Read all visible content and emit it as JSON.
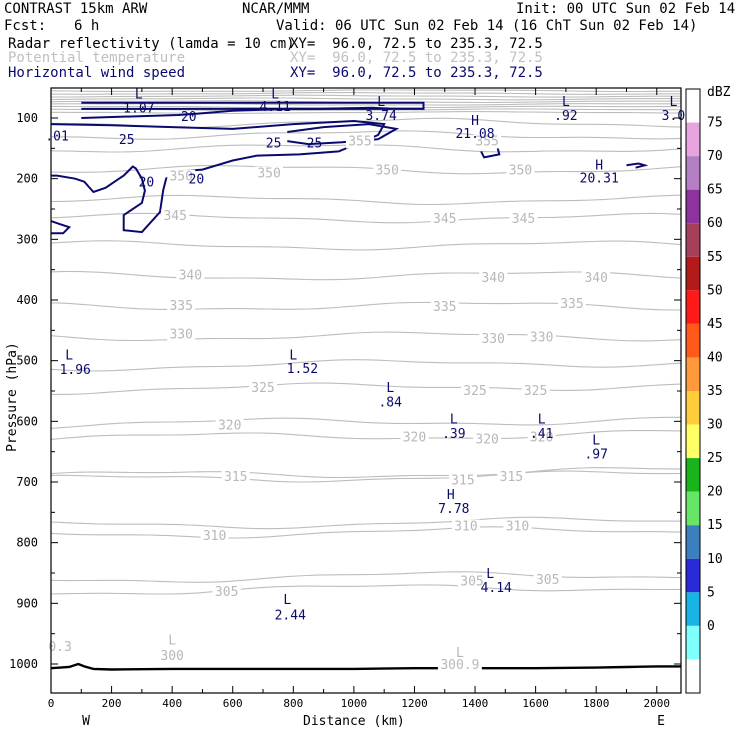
{
  "header": {
    "model": "CONTRAST 15km ARW",
    "center": "NCAR/MMM",
    "init": "Init: 00 UTC Sun 02 Feb 14",
    "fcst_label": "Fcst:",
    "fcst_value": "6 h",
    "valid": "Valid: 06 UTC Sun 02 Feb 14 (16 ChT Sun 02 Feb 14)",
    "fields": [
      {
        "label": "Radar reflectivity (lamda = 10 cm)",
        "xy": "XY=  96.0, 72.5 to 235.3, 72.5",
        "color": "#000000"
      },
      {
        "label": "Potential temperature",
        "xy": "XY=  96.0, 72.5 to 235.3, 72.5",
        "color": "#c0c0c0"
      },
      {
        "label": "Horizontal wind speed",
        "xy": "XY=  96.0, 72.5 to 235.3, 72.5",
        "color": "#0a0a6e"
      }
    ]
  },
  "chart_data": {
    "type": "cross-section contour",
    "xlabel": "Distance (km)",
    "ylabel": "Pressure (hPa)",
    "xlim": [
      0,
      2080
    ],
    "ylim": [
      1045,
      50
    ],
    "x_ticks": [
      0,
      200,
      400,
      600,
      800,
      1000,
      1200,
      1400,
      1600,
      1800,
      2000
    ],
    "y_ticks": [
      100,
      200,
      300,
      400,
      500,
      600,
      700,
      800,
      900,
      1000
    ],
    "x_end_labels": {
      "left": "W",
      "right": "E"
    },
    "colorbar": {
      "unit": "dBZ",
      "levels": [
        {
          "value": "75",
          "color": "#e8a3df"
        },
        {
          "value": "70",
          "color": "#b47fc2"
        },
        {
          "value": "65",
          "color": "#8e339e"
        },
        {
          "value": "60",
          "color": "#a63f5a"
        },
        {
          "value": "55",
          "color": "#b31a1a"
        },
        {
          "value": "50",
          "color": "#ff1a1a"
        },
        {
          "value": "45",
          "color": "#ff5a1a"
        },
        {
          "value": "40",
          "color": "#ff9a3c"
        },
        {
          "value": "35",
          "color": "#ffcc3c"
        },
        {
          "value": "30",
          "color": "#ffff66"
        },
        {
          "value": "25",
          "color": "#1ab31a"
        },
        {
          "value": "20",
          "color": "#66e666"
        },
        {
          "value": "15",
          "color": "#3c7fbf"
        },
        {
          "value": "10",
          "color": "#2a2ad9"
        },
        {
          "value": "5",
          "color": "#1ab3e6"
        },
        {
          "value": "0",
          "color": "#80ffff"
        }
      ],
      "bottom_color": "#ffffff"
    },
    "theta_labels": [
      {
        "text": "355",
        "x": 1020,
        "p": 137
      },
      {
        "text": "355",
        "x": 1440,
        "p": 137
      },
      {
        "text": "350",
        "x": 430,
        "p": 195
      },
      {
        "text": "350",
        "x": 720,
        "p": 190
      },
      {
        "text": "350",
        "x": 1110,
        "p": 185
      },
      {
        "text": "350",
        "x": 1550,
        "p": 185
      },
      {
        "text": "345",
        "x": 410,
        "p": 260
      },
      {
        "text": "345",
        "x": 1300,
        "p": 265
      },
      {
        "text": "345",
        "x": 1560,
        "p": 265
      },
      {
        "text": "340",
        "x": 460,
        "p": 358
      },
      {
        "text": "340",
        "x": 1460,
        "p": 362
      },
      {
        "text": "340",
        "x": 1800,
        "p": 362
      },
      {
        "text": "335",
        "x": 430,
        "p": 408
      },
      {
        "text": "335",
        "x": 1300,
        "p": 410
      },
      {
        "text": "335",
        "x": 1720,
        "p": 405
      },
      {
        "text": "330",
        "x": 430,
        "p": 455
      },
      {
        "text": "330",
        "x": 1460,
        "p": 463
      },
      {
        "text": "330",
        "x": 1620,
        "p": 460
      },
      {
        "text": "325",
        "x": 700,
        "p": 543
      },
      {
        "text": "325",
        "x": 1400,
        "p": 548
      },
      {
        "text": "325",
        "x": 1600,
        "p": 548
      },
      {
        "text": "320",
        "x": 590,
        "p": 605
      },
      {
        "text": "320",
        "x": 1200,
        "p": 625
      },
      {
        "text": "320",
        "x": 1440,
        "p": 628
      },
      {
        "text": "320",
        "x": 1620,
        "p": 625
      },
      {
        "text": "315",
        "x": 610,
        "p": 690
      },
      {
        "text": "315",
        "x": 1360,
        "p": 696
      },
      {
        "text": "315",
        "x": 1520,
        "p": 690
      },
      {
        "text": "310",
        "x": 540,
        "p": 787
      },
      {
        "text": "310",
        "x": 1370,
        "p": 772
      },
      {
        "text": "310",
        "x": 1540,
        "p": 772
      },
      {
        "text": "305",
        "x": 580,
        "p": 880
      },
      {
        "text": "305",
        "x": 1390,
        "p": 862
      },
      {
        "text": "305",
        "x": 1640,
        "p": 860
      },
      {
        "text": "0.3",
        "x": 30,
        "p": 970
      },
      {
        "text": "L",
        "x": 400,
        "p": 960
      },
      {
        "text": "300",
        "x": 400,
        "p": 985
      },
      {
        "text": "L",
        "x": 1350,
        "p": 980
      },
      {
        "text": "300.9",
        "x": 1350,
        "p": 1000
      }
    ],
    "wind_labels": [
      {
        "text": "L",
        "x": 290,
        "p": 60
      },
      {
        "text": "1.07",
        "x": 290,
        "p": 83
      },
      {
        "text": "20",
        "x": 455,
        "p": 97
      },
      {
        "text": "L",
        "x": 740,
        "p": 60
      },
      {
        "text": "4.11",
        "x": 740,
        "p": 80
      },
      {
        "text": "L",
        "x": 1090,
        "p": 72
      },
      {
        "text": "3.74",
        "x": 1090,
        "p": 95
      },
      {
        "text": ".01",
        "x": 20,
        "p": 129
      },
      {
        "text": "25",
        "x": 250,
        "p": 135
      },
      {
        "text": "25",
        "x": 735,
        "p": 140
      },
      {
        "text": "25",
        "x": 870,
        "p": 140
      },
      {
        "text": "H",
        "x": 1400,
        "p": 103
      },
      {
        "text": "21.08",
        "x": 1400,
        "p": 125
      },
      {
        "text": "L",
        "x": 1700,
        "p": 72
      },
      {
        "text": ".92",
        "x": 1700,
        "p": 95
      },
      {
        "text": "L",
        "x": 2055,
        "p": 72
      },
      {
        "text": "3.0",
        "x": 2055,
        "p": 95
      },
      {
        "text": "20",
        "x": 315,
        "p": 205
      },
      {
        "text": "20",
        "x": 480,
        "p": 200
      },
      {
        "text": "H",
        "x": 1810,
        "p": 177
      },
      {
        "text": "20.31",
        "x": 1810,
        "p": 198
      },
      {
        "text": "L",
        "x": 60,
        "p": 490
      },
      {
        "text": "1.96",
        "x": 80,
        "p": 514
      },
      {
        "text": "L",
        "x": 800,
        "p": 490
      },
      {
        "text": "1.52",
        "x": 830,
        "p": 512
      },
      {
        "text": "L",
        "x": 1120,
        "p": 543
      },
      {
        "text": ".84",
        "x": 1120,
        "p": 567
      },
      {
        "text": "L",
        "x": 1330,
        "p": 595
      },
      {
        "text": ".39",
        "x": 1330,
        "p": 619
      },
      {
        "text": "L",
        "x": 1620,
        "p": 595
      },
      {
        "text": ".41",
        "x": 1620,
        "p": 619
      },
      {
        "text": "L",
        "x": 1800,
        "p": 630
      },
      {
        "text": ".97",
        "x": 1800,
        "p": 653
      },
      {
        "text": "H",
        "x": 1320,
        "p": 720
      },
      {
        "text": "7.78",
        "x": 1330,
        "p": 743
      },
      {
        "text": "L",
        "x": 1450,
        "p": 850
      },
      {
        "text": "4.14",
        "x": 1470,
        "p": 873
      },
      {
        "text": "L",
        "x": 780,
        "p": 893
      },
      {
        "text": "2.44",
        "x": 790,
        "p": 918
      }
    ],
    "wind_contours": [
      {
        "level": 20,
        "points": [
          [
            100,
            75
          ],
          [
            1230,
            75
          ],
          [
            1230,
            85
          ],
          [
            100,
            85
          ]
        ]
      },
      {
        "level": 20,
        "points": [
          [
            100,
            100
          ],
          [
            420,
            95
          ],
          [
            480,
            93
          ],
          [
            600,
            88
          ],
          [
            780,
            85
          ],
          [
            900,
            85
          ],
          [
            1060,
            83
          ],
          [
            1120,
            85
          ]
        ]
      },
      {
        "level": 25,
        "points": [
          [
            780,
            123
          ],
          [
            900,
            115
          ],
          [
            1050,
            110
          ],
          [
            1140,
            118
          ],
          [
            1080,
            135
          ],
          [
            960,
            140
          ],
          [
            850,
            143
          ],
          [
            780,
            138
          ]
        ]
      },
      {
        "level": 20,
        "points": [
          [
            0,
            110
          ],
          [
            200,
            112
          ],
          [
            400,
            115
          ],
          [
            600,
            118
          ],
          [
            800,
            110
          ],
          [
            1000,
            105
          ],
          [
            1100,
            110
          ],
          [
            1080,
            128
          ],
          [
            950,
            155
          ],
          [
            820,
            160
          ],
          [
            680,
            162
          ],
          [
            600,
            170
          ],
          [
            500,
            185
          ],
          [
            420,
            188
          ],
          [
            380,
            200
          ],
          [
            370,
            220
          ],
          [
            360,
            255
          ],
          [
            300,
            288
          ],
          [
            240,
            285
          ],
          [
            240,
            260
          ],
          [
            300,
            240
          ],
          [
            310,
            220
          ],
          [
            300,
            200
          ],
          [
            280,
            183
          ],
          [
            270,
            180
          ],
          [
            240,
            195
          ],
          [
            210,
            205
          ],
          [
            180,
            215
          ],
          [
            140,
            222
          ],
          [
            110,
            205
          ],
          [
            80,
            200
          ],
          [
            20,
            195
          ],
          [
            0,
            195
          ]
        ]
      },
      {
        "level": 20,
        "points": [
          [
            0,
            270
          ],
          [
            30,
            275
          ],
          [
            60,
            280
          ],
          [
            40,
            290
          ],
          [
            0,
            290
          ]
        ]
      },
      {
        "level": 20,
        "points": [
          [
            1420,
            140
          ],
          [
            1440,
            135
          ],
          [
            1470,
            140
          ],
          [
            1480,
            160
          ],
          [
            1430,
            165
          ],
          [
            1420,
            155
          ]
        ]
      },
      {
        "level": 20,
        "points": [
          [
            1900,
            178
          ],
          [
            1940,
            175
          ],
          [
            1960,
            178
          ],
          [
            1930,
            182
          ]
        ]
      }
    ],
    "terrain": [
      [
        0,
        1007
      ],
      [
        60,
        1005
      ],
      [
        90,
        1000
      ],
      [
        110,
        1004
      ],
      [
        140,
        1008
      ],
      [
        200,
        1009
      ],
      [
        400,
        1008
      ],
      [
        600,
        1008
      ],
      [
        800,
        1008
      ],
      [
        1000,
        1008
      ],
      [
        1200,
        1007
      ],
      [
        1400,
        1007
      ],
      [
        1600,
        1007
      ],
      [
        1800,
        1006
      ],
      [
        1900,
        1005
      ],
      [
        2000,
        1004
      ],
      [
        2080,
        1004
      ]
    ]
  }
}
